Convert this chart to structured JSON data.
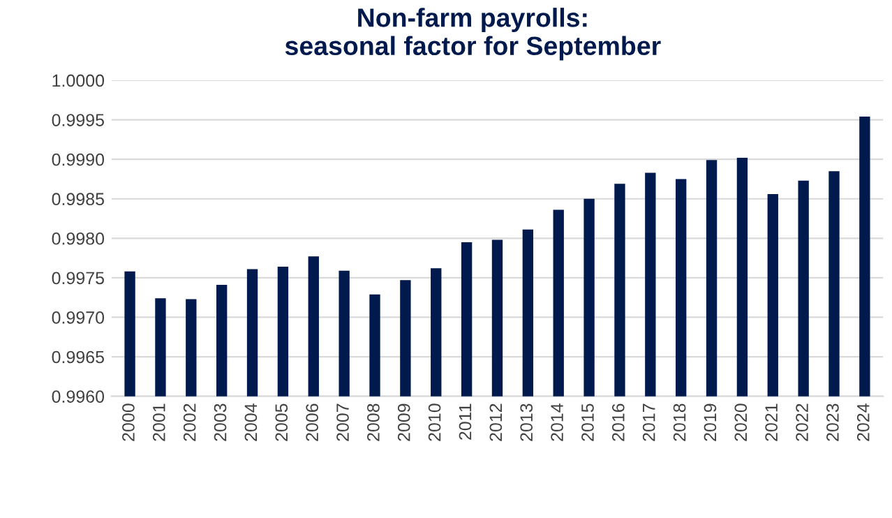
{
  "chart_data": {
    "type": "bar",
    "title": "Non-farm payrolls:\nseasonal factor for September",
    "categories": [
      "2000",
      "2001",
      "2002",
      "2003",
      "2004",
      "2005",
      "2006",
      "2007",
      "2008",
      "2009",
      "2010",
      "2011",
      "2012",
      "2013",
      "2014",
      "2015",
      "2016",
      "2017",
      "2018",
      "2019",
      "2020",
      "2021",
      "2022",
      "2023",
      "2024"
    ],
    "values": [
      0.99758,
      0.99724,
      0.99723,
      0.99741,
      0.99761,
      0.99764,
      0.99777,
      0.99759,
      0.99729,
      0.99747,
      0.99762,
      0.99795,
      0.99798,
      0.99811,
      0.99836,
      0.9985,
      0.99869,
      0.99883,
      0.99875,
      0.99899,
      0.99902,
      0.99856,
      0.99873,
      0.99885,
      0.99954
    ],
    "color": "#001a4d",
    "ylim": [
      0.996,
      1.0
    ],
    "yticks": [
      {
        "value": 0.996,
        "label": "0.9960"
      },
      {
        "value": 0.9965,
        "label": "0.9965"
      },
      {
        "value": 0.997,
        "label": "0.9970"
      },
      {
        "value": 0.9975,
        "label": "0.9975"
      },
      {
        "value": 0.998,
        "label": "0.9980"
      },
      {
        "value": 0.9985,
        "label": "0.9985"
      },
      {
        "value": 0.999,
        "label": "0.9990"
      },
      {
        "value": 0.9995,
        "label": "0.9995"
      },
      {
        "value": 1.0,
        "label": "1.0000"
      }
    ],
    "grid": "y"
  }
}
